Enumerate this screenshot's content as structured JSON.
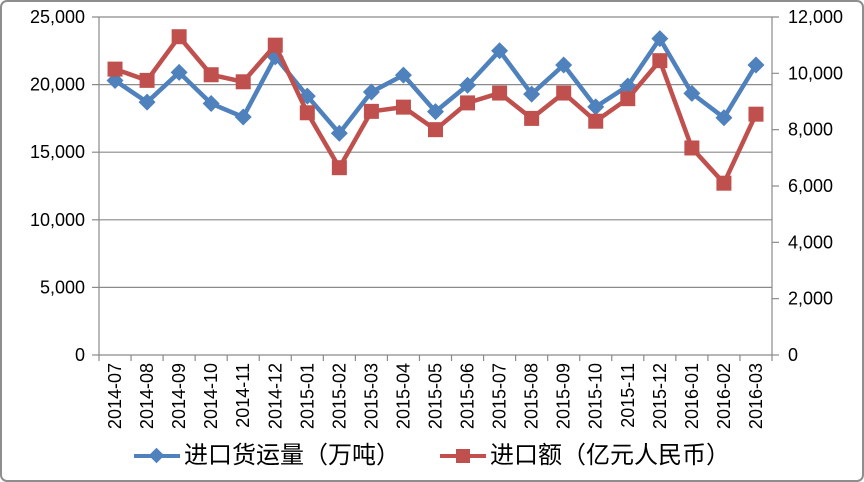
{
  "chart_data": {
    "type": "line",
    "title": "",
    "x": [
      "2014-07",
      "2014-08",
      "2014-09",
      "2014-10",
      "2014-11",
      "2014-12",
      "2015-01",
      "2015-02",
      "2015-03",
      "2015-04",
      "2015-05",
      "2015-06",
      "2015-07",
      "2015-08",
      "2015-09",
      "2015-10",
      "2015-11",
      "2015-12",
      "2016-01",
      "2016-02",
      "2016-03"
    ],
    "series": [
      {
        "id": "import-volume",
        "name": "进口货运量（万吨）",
        "axis": "left",
        "color": "#4F81BD",
        "marker": "diamond",
        "values": [
          20300,
          18700,
          20900,
          18600,
          17600,
          22050,
          19150,
          16400,
          19450,
          20700,
          18000,
          19950,
          22500,
          19300,
          21450,
          18350,
          19900,
          23400,
          19350,
          17550,
          21450
        ]
      },
      {
        "id": "import-value",
        "name": "进口额（亿元人民币）",
        "axis": "right",
        "color": "#C0504D",
        "marker": "square",
        "values": [
          10150,
          9750,
          11300,
          9950,
          9700,
          11000,
          8600,
          6650,
          8650,
          8800,
          8000,
          8950,
          9300,
          8400,
          9300,
          8300,
          9100,
          10450,
          7350,
          6100,
          8550
        ]
      }
    ],
    "left_axis": {
      "min": 0,
      "max": 25000,
      "step": 5000,
      "tick_values": [
        0,
        5000,
        10000,
        15000,
        20000,
        25000
      ],
      "tick_labels": [
        "0",
        "5,000",
        "10,000",
        "15,000",
        "20,000",
        "25,000"
      ]
    },
    "right_axis": {
      "min": 0,
      "max": 12000,
      "step": 2000,
      "tick_values": [
        0,
        2000,
        4000,
        6000,
        8000,
        10000,
        12000
      ],
      "tick_labels": [
        "0",
        "2,000",
        "4,000",
        "6,000",
        "8,000",
        "10,000",
        "12,000"
      ]
    },
    "grid": "horizontal",
    "grid_color": "#8a8a8a",
    "text_color": "#000000",
    "legend_position": "bottom"
  }
}
